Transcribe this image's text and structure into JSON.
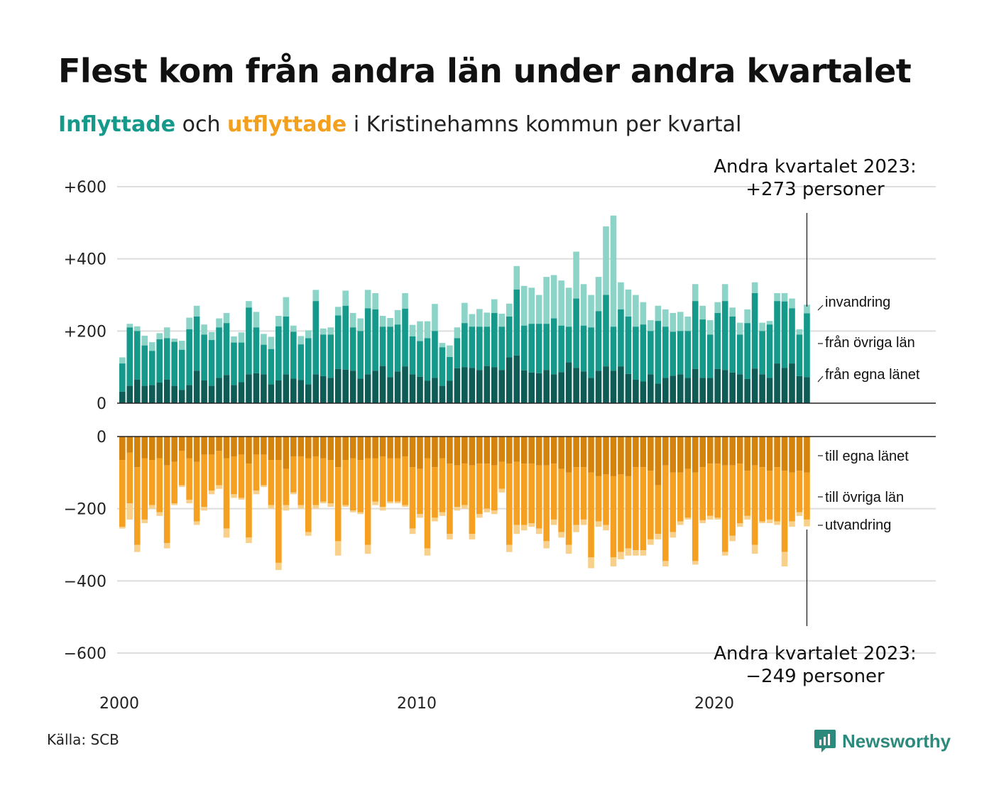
{
  "title": "Flest kom från andra län under andra kvartalet",
  "subtitle": {
    "inflow_word": "Inflyttade",
    "and_word": "och",
    "outflow_word": "utflyttade",
    "rest": "i Kristinehamns kommun per kvartal"
  },
  "source": "Källa: SCB",
  "brand": {
    "name": "Newsworthy",
    "icon": "newsworthy-logo-icon"
  },
  "colors": {
    "in_own": "#0e5c55",
    "in_other": "#15998a",
    "in_immigration": "#8dd4c8",
    "out_own": "#d4830d",
    "out_other": "#f5a020",
    "out_emigration": "#f8d08a",
    "grid": "#dddddd",
    "axis": "#222222"
  },
  "chart_data": {
    "type": "bar",
    "stacked": true,
    "x_start": "2000 Q1",
    "x_end": "2023 Q2",
    "x_ticks": [
      "2000",
      "2010",
      "2020"
    ],
    "top_panel": {
      "ylim": [
        0,
        600
      ],
      "y_ticks": [
        0,
        200,
        400,
        600
      ],
      "y_tick_labels": [
        "0",
        "+200",
        "+400",
        "+600"
      ],
      "series_names": [
        "från egna länet",
        "från övriga län",
        "invandring"
      ],
      "totals": [
        127,
        220,
        213,
        187,
        169,
        194,
        210,
        179,
        173,
        237,
        270,
        218,
        197,
        235,
        250,
        185,
        196,
        283,
        253,
        192,
        184,
        242,
        294,
        215,
        186,
        202,
        314,
        207,
        210,
        267,
        312,
        250,
        235,
        314,
        305,
        242,
        236,
        258,
        305,
        217,
        227,
        227,
        275,
        167,
        160,
        210,
        278,
        247,
        261,
        251,
        288,
        248,
        276,
        380,
        325,
        320,
        300,
        350,
        355,
        340,
        320,
        420,
        330,
        300,
        350,
        490,
        520,
        335,
        315,
        300,
        280,
        230,
        270,
        260,
        250,
        253,
        240,
        330,
        270,
        230,
        280,
        330,
        265,
        223,
        260,
        335,
        223,
        228,
        305,
        305,
        290,
        205,
        273
      ],
      "lower_totals": [
        110,
        210,
        200,
        160,
        145,
        177,
        180,
        170,
        148,
        205,
        240,
        190,
        175,
        210,
        222,
        168,
        168,
        265,
        210,
        162,
        150,
        213,
        240,
        198,
        163,
        180,
        283,
        190,
        190,
        243,
        270,
        210,
        200,
        263,
        260,
        212,
        212,
        218,
        262,
        185,
        172,
        180,
        200,
        155,
        128,
        180,
        222,
        212,
        212,
        212,
        250,
        212,
        240,
        315,
        215,
        220,
        220,
        220,
        235,
        215,
        212,
        290,
        215,
        210,
        255,
        300,
        212,
        260,
        240,
        212,
        218,
        200,
        228,
        212,
        198,
        200,
        200,
        283,
        232,
        190,
        250,
        283,
        240,
        190,
        222,
        305,
        200,
        218,
        283,
        282,
        263,
        190,
        249
      ],
      "own_county": [
        32,
        48,
        65,
        48,
        50,
        57,
        65,
        48,
        37,
        50,
        90,
        63,
        48,
        70,
        78,
        50,
        58,
        80,
        83,
        80,
        52,
        63,
        80,
        68,
        64,
        52,
        80,
        75,
        70,
        95,
        93,
        90,
        68,
        80,
        90,
        103,
        72,
        88,
        102,
        80,
        73,
        62,
        70,
        48,
        62,
        97,
        100,
        98,
        92,
        103,
        100,
        92,
        127,
        132,
        91,
        85,
        83,
        92,
        80,
        86,
        113,
        98,
        88,
        70,
        90,
        102,
        90,
        102,
        81,
        65,
        60,
        80,
        54,
        70,
        76,
        80,
        70,
        95,
        70,
        70,
        95,
        92,
        85,
        80,
        67,
        96,
        80,
        70,
        110,
        98,
        110,
        75,
        72
      ]
    },
    "bottom_panel": {
      "ylim": [
        -600,
        0
      ],
      "y_ticks": [
        0,
        -200,
        -400,
        -600
      ],
      "y_tick_labels": [
        "0",
        "−200",
        "−400",
        "−600"
      ],
      "series_names": [
        "till egna länet",
        "till övriga län",
        "utvandring"
      ],
      "totals": [
        -255,
        -230,
        -320,
        -240,
        -200,
        -220,
        -310,
        -190,
        -140,
        -185,
        -245,
        -205,
        -160,
        -145,
        -280,
        -170,
        -175,
        -295,
        -160,
        -140,
        -200,
        -370,
        -205,
        -160,
        -200,
        -275,
        -200,
        -185,
        -195,
        -330,
        -195,
        -210,
        -215,
        -325,
        -190,
        -205,
        -185,
        -185,
        -195,
        -270,
        -225,
        -330,
        -235,
        -220,
        -285,
        -205,
        -200,
        -285,
        -225,
        -210,
        -215,
        -155,
        -320,
        -270,
        -260,
        -250,
        -270,
        -310,
        -245,
        -280,
        -325,
        -265,
        -245,
        -365,
        -250,
        -260,
        -360,
        -340,
        -330,
        -330,
        -330,
        -300,
        -285,
        -360,
        -280,
        -245,
        -230,
        -355,
        -240,
        -230,
        -230,
        -330,
        -290,
        -250,
        -230,
        -325,
        -240,
        -240,
        -245,
        -360,
        -250,
        -220,
        -249
      ],
      "lower_totals": [
        -250,
        -185,
        -300,
        -230,
        -190,
        -210,
        -295,
        -185,
        -135,
        -175,
        -235,
        -195,
        -150,
        -135,
        -255,
        -160,
        -170,
        -280,
        -150,
        -135,
        -190,
        -350,
        -190,
        -155,
        -190,
        -265,
        -190,
        -180,
        -185,
        -290,
        -190,
        -205,
        -210,
        -300,
        -180,
        -195,
        -180,
        -180,
        -190,
        -255,
        -215,
        -310,
        -225,
        -210,
        -270,
        -195,
        -190,
        -270,
        -215,
        -200,
        -205,
        -145,
        -300,
        -245,
        -245,
        -240,
        -255,
        -290,
        -230,
        -265,
        -300,
        -245,
        -230,
        -335,
        -235,
        -245,
        -335,
        -320,
        -310,
        -315,
        -315,
        -285,
        -270,
        -345,
        -265,
        -235,
        -225,
        -345,
        -232,
        -220,
        -225,
        -320,
        -275,
        -240,
        -220,
        -300,
        -235,
        -230,
        -235,
        -320,
        -235,
        -210,
        -230
      ],
      "own_county": [
        -65,
        -45,
        -85,
        -60,
        -65,
        -60,
        -80,
        -70,
        -40,
        -60,
        -70,
        -50,
        -50,
        -40,
        -60,
        -55,
        -50,
        -75,
        -50,
        -50,
        -65,
        -65,
        -90,
        -55,
        -55,
        -60,
        -55,
        -60,
        -65,
        -85,
        -65,
        -60,
        -65,
        -60,
        -60,
        -55,
        -60,
        -60,
        -55,
        -85,
        -90,
        -60,
        -85,
        -60,
        -75,
        -80,
        -75,
        -80,
        -75,
        -75,
        -80,
        -70,
        -75,
        -70,
        -75,
        -75,
        -80,
        -80,
        -75,
        -90,
        -100,
        -85,
        -85,
        -100,
        -110,
        -105,
        -110,
        -105,
        -110,
        -85,
        -85,
        -95,
        -135,
        -80,
        -100,
        -100,
        -90,
        -100,
        -85,
        -75,
        -75,
        -80,
        -80,
        -75,
        -95,
        -80,
        -85,
        -95,
        -85,
        -95,
        -100,
        -95,
        -100
      ]
    },
    "series_labels": {
      "in": [
        "invandring",
        "från övriga län",
        "från egna länet"
      ],
      "out": [
        "till egna länet",
        "till övriga län",
        "utvandring"
      ]
    },
    "annotations": {
      "top_line1": "Andra kvartalet 2023:",
      "top_line2": "+273 personer",
      "bottom_line1": "Andra kvartalet 2023:",
      "bottom_line2": "−249 personer"
    }
  }
}
